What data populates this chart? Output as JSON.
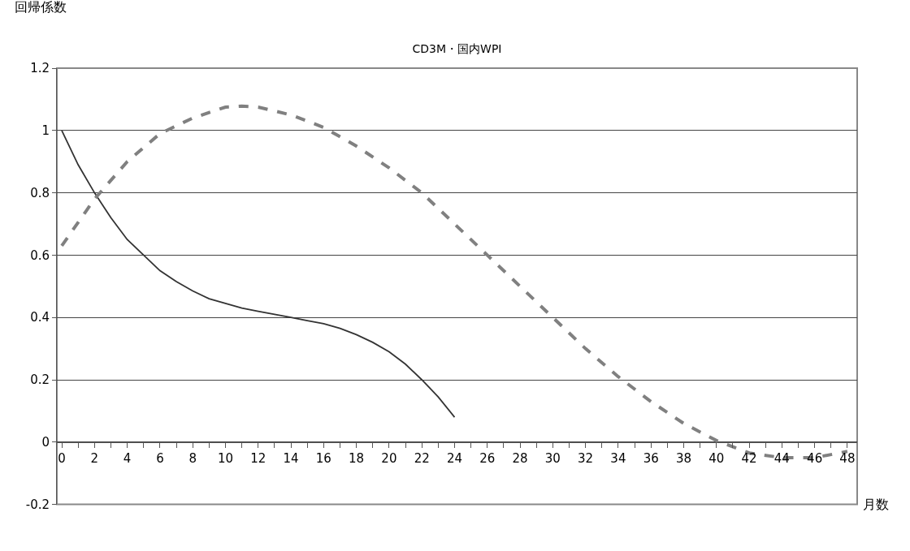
{
  "chart_data": {
    "type": "line",
    "title": "CD3M・国内WPI",
    "ylabel": "回帰係数",
    "xlabel": "月数",
    "xlim": [
      -0.3,
      48.6
    ],
    "ylim": [
      -0.2,
      1.2
    ],
    "xticks": [
      0,
      {
        "value": 1,
        "label": null
      },
      2,
      {
        "value": 3,
        "label": null
      },
      4,
      {
        "value": 5,
        "label": null
      },
      6,
      {
        "value": 7,
        "label": null
      },
      8,
      {
        "value": 9,
        "label": null
      },
      10,
      {
        "value": 11,
        "label": null
      },
      12,
      {
        "value": 13,
        "label": null
      },
      14,
      {
        "value": 15,
        "label": null
      },
      16,
      {
        "value": 17,
        "label": null
      },
      18,
      {
        "value": 19,
        "label": null
      },
      20,
      {
        "value": 21,
        "label": null
      },
      22,
      {
        "value": 23,
        "label": null
      },
      24,
      {
        "value": 25,
        "label": null
      },
      26,
      {
        "value": 27,
        "label": null
      },
      28,
      {
        "value": 29,
        "label": null
      },
      30,
      {
        "value": 31,
        "label": null
      },
      32,
      {
        "value": 33,
        "label": null
      },
      34,
      {
        "value": 35,
        "label": null
      },
      36,
      {
        "value": 37,
        "label": null
      },
      38,
      {
        "value": 39,
        "label": null
      },
      40,
      {
        "value": 41,
        "label": null
      },
      42,
      {
        "value": 43,
        "label": null
      },
      44,
      {
        "value": 45,
        "label": null
      },
      46,
      {
        "value": 47,
        "label": null
      },
      48
    ],
    "yticks": [
      -0.2,
      0,
      0.2,
      0.4,
      0.6,
      0.8,
      1,
      1.2
    ],
    "grid": "y",
    "series": [
      {
        "color": "#333333",
        "line_style": "solid",
        "x": [
          0,
          1,
          2,
          3,
          4,
          5,
          6,
          7,
          8,
          9,
          10,
          11,
          12,
          13,
          14,
          15,
          16,
          17,
          18,
          19,
          20,
          21,
          22,
          23,
          24
        ],
        "values": [
          1.0,
          0.89,
          0.8,
          0.72,
          0.65,
          0.6,
          0.55,
          0.515,
          0.485,
          0.46,
          0.445,
          0.43,
          0.42,
          0.41,
          0.4,
          0.39,
          0.38,
          0.365,
          0.345,
          0.32,
          0.29,
          0.25,
          0.2,
          0.145,
          0.08
        ]
      },
      {
        "color": "#808080",
        "line_style": "dashed",
        "x": [
          0,
          2,
          4,
          6,
          8,
          10,
          11,
          12,
          14,
          16,
          18,
          20,
          22,
          24,
          26,
          28,
          30,
          32,
          34,
          36,
          38,
          40,
          42,
          44,
          46,
          48
        ],
        "values": [
          0.63,
          0.78,
          0.9,
          0.99,
          1.04,
          1.075,
          1.078,
          1.075,
          1.05,
          1.01,
          0.95,
          0.88,
          0.8,
          0.7,
          0.6,
          0.5,
          0.4,
          0.3,
          0.21,
          0.13,
          0.06,
          0.005,
          -0.035,
          -0.05,
          -0.05,
          -0.03
        ]
      }
    ]
  }
}
